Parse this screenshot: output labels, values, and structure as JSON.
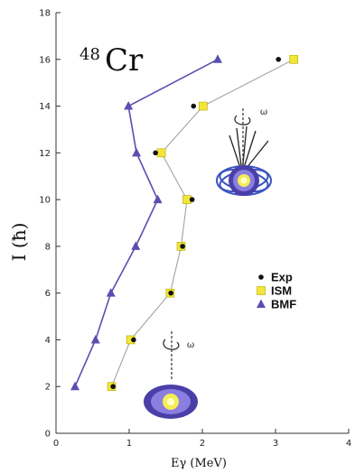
{
  "chart_data": {
    "type": "line",
    "title": {
      "mass_number": "48",
      "element": "Cr"
    },
    "xlabel": {
      "main": "Eγ",
      "unit": "(MeV)"
    },
    "ylabel": {
      "main": "I",
      "unit": "(ħ)"
    },
    "xlim": [
      0,
      4
    ],
    "ylim": [
      0,
      18
    ],
    "x_ticks": [
      "0",
      "1",
      "2",
      "3",
      "4"
    ],
    "y_ticks": [
      "0",
      "2",
      "4",
      "6",
      "8",
      "10",
      "12",
      "14",
      "16",
      "18"
    ],
    "series": [
      {
        "name": "Exp",
        "marker": "circle",
        "color": "#111111",
        "line": false,
        "points": [
          {
            "x": 0.78,
            "y": 2
          },
          {
            "x": 1.06,
            "y": 4
          },
          {
            "x": 1.57,
            "y": 6
          },
          {
            "x": 1.73,
            "y": 8
          },
          {
            "x": 1.86,
            "y": 10
          },
          {
            "x": 1.36,
            "y": 12
          },
          {
            "x": 1.88,
            "y": 14
          },
          {
            "x": 3.04,
            "y": 16
          }
        ]
      },
      {
        "name": "ISM",
        "marker": "square",
        "color": "#f2e637",
        "line": true,
        "line_color": "#9a9a9a",
        "points": [
          {
            "x": 0.76,
            "y": 2
          },
          {
            "x": 1.02,
            "y": 4
          },
          {
            "x": 1.56,
            "y": 6
          },
          {
            "x": 1.71,
            "y": 8
          },
          {
            "x": 1.79,
            "y": 10
          },
          {
            "x": 1.44,
            "y": 12
          },
          {
            "x": 2.01,
            "y": 14
          },
          {
            "x": 3.25,
            "y": 16
          }
        ]
      },
      {
        "name": "BMF",
        "marker": "triangle",
        "color": "#5a4fb0",
        "line": true,
        "line_color": "#5a4fb0",
        "points": [
          {
            "x": 0.26,
            "y": 2
          },
          {
            "x": 0.54,
            "y": 4
          },
          {
            "x": 0.75,
            "y": 6
          },
          {
            "x": 1.09,
            "y": 8
          },
          {
            "x": 1.39,
            "y": 10
          },
          {
            "x": 1.1,
            "y": 12
          },
          {
            "x": 0.99,
            "y": 14
          },
          {
            "x": 2.21,
            "y": 16
          }
        ]
      }
    ],
    "legend": {
      "placement": "right-middle",
      "entries": [
        "Exp",
        "ISM",
        "BMF"
      ]
    },
    "annotations": {
      "omega": "ω"
    },
    "grid": false
  }
}
